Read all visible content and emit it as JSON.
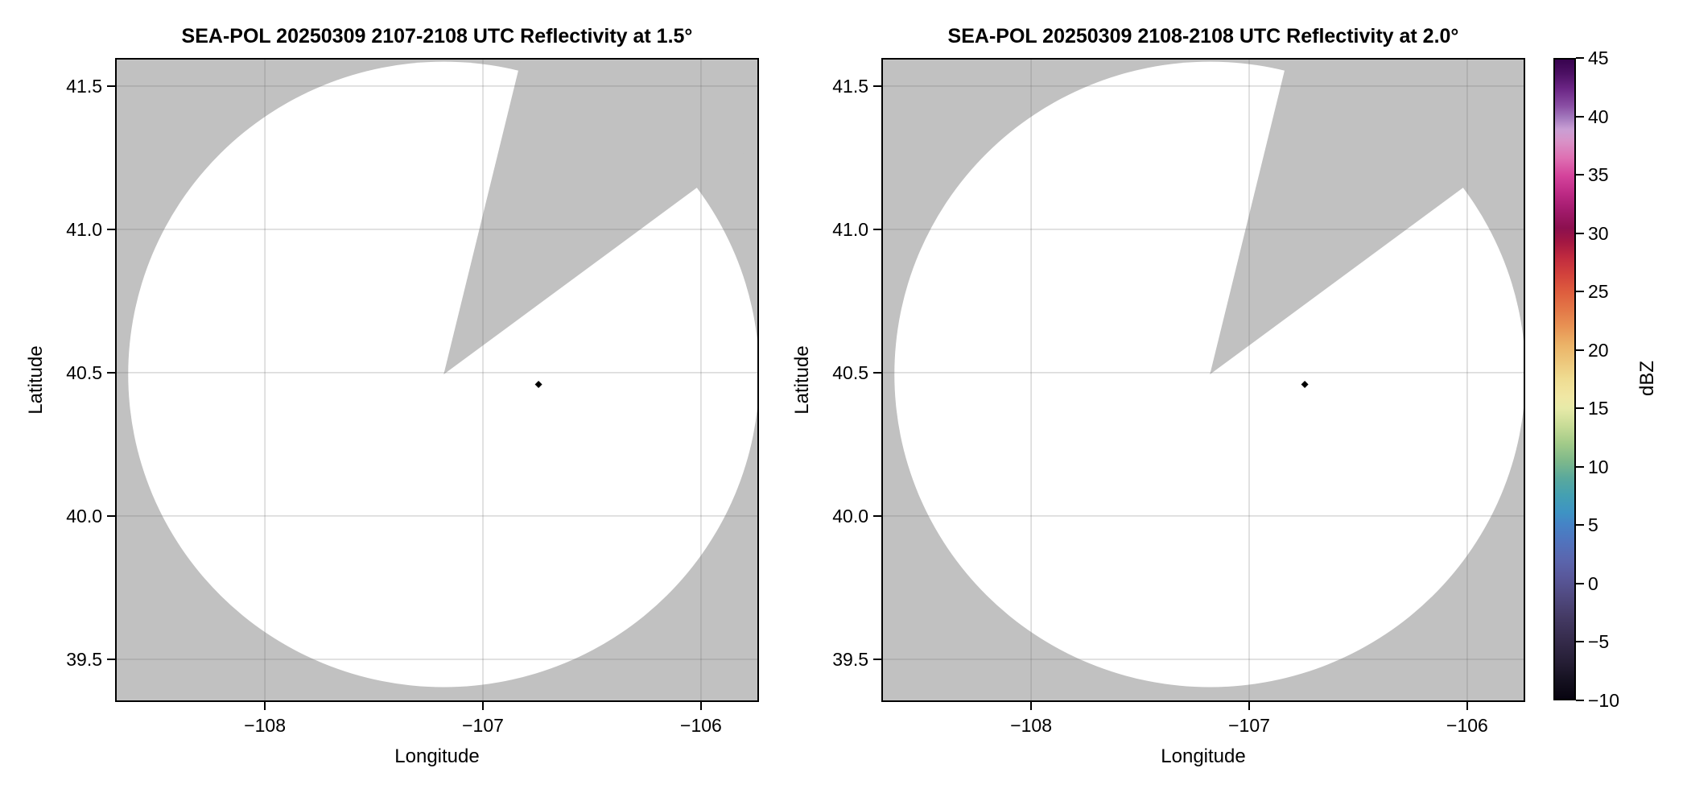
{
  "figure": {
    "background": "#ffffff",
    "panel_bg": "#c1c1c1",
    "scan_fill": "#ffffff",
    "grid_color": "rgba(110,110,110,0.28)",
    "frame_color": "#000000"
  },
  "chart_data": {
    "type": "radar_ppi_pair",
    "shared_axes": {
      "xlabel": "Longitude",
      "ylabel": "Latitude",
      "xlim": [
        -108.687,
        -105.734
      ],
      "ylim": [
        39.351,
        41.598
      ],
      "xticks": [
        {
          "value": -108,
          "label": "−108"
        },
        {
          "value": -107,
          "label": "−107"
        },
        {
          "value": -106,
          "label": "−106"
        }
      ],
      "yticks": [
        {
          "value": 41.5,
          "label": "41.5"
        },
        {
          "value": 41.0,
          "label": "41.0"
        },
        {
          "value": 40.5,
          "label": "40.5"
        },
        {
          "value": 40.0,
          "label": "40.0"
        },
        {
          "value": 39.5,
          "label": "39.5"
        }
      ],
      "grid": true
    },
    "panels": [
      {
        "title": "SEA-POL 20250309 2107-2108 UTC Reflectivity at 1.5°",
        "elevation_deg": 1.5,
        "radar_center": {
          "lon": -107.18,
          "lat": 40.494
        },
        "scan_radius": {
          "lon_deg": 1.447,
          "lat_deg": 1.091
        },
        "blocked_sector": {
          "azimuth_start_deg": 13.8,
          "azimuth_end_deg": 53.6
        },
        "marker": {
          "lon": -106.745,
          "lat": 40.459,
          "shape": "diamond",
          "color": "#000000"
        }
      },
      {
        "title": "SEA-POL 20250309 2108-2108 UTC Reflectivity at 2.0°",
        "elevation_deg": 2.0,
        "radar_center": {
          "lon": -107.18,
          "lat": 40.494
        },
        "scan_radius": {
          "lon_deg": 1.447,
          "lat_deg": 1.091
        },
        "blocked_sector": {
          "azimuth_start_deg": 13.8,
          "azimuth_end_deg": 53.6
        },
        "marker": {
          "lon": -106.745,
          "lat": 40.459,
          "shape": "diamond",
          "color": "#000000"
        }
      }
    ],
    "colorbar": {
      "label": "dBZ",
      "vmin": -10,
      "vmax": 45,
      "ticks": [
        {
          "value": 45,
          "label": "45"
        },
        {
          "value": 40,
          "label": "40"
        },
        {
          "value": 35,
          "label": "35"
        },
        {
          "value": 30,
          "label": "30"
        },
        {
          "value": 25,
          "label": "25"
        },
        {
          "value": 20,
          "label": "20"
        },
        {
          "value": 15,
          "label": "15"
        },
        {
          "value": 10,
          "label": "10"
        },
        {
          "value": 5,
          "label": "5"
        },
        {
          "value": 0,
          "label": "0"
        },
        {
          "value": -5,
          "label": "−5"
        },
        {
          "value": -10,
          "label": "−10"
        }
      ],
      "gradient_stops": [
        {
          "value": 45,
          "color": "#38034f"
        },
        {
          "value": 43.8,
          "color": "#4c1063"
        },
        {
          "value": 42.5,
          "color": "#6b2585"
        },
        {
          "value": 41,
          "color": "#8a4fa4"
        },
        {
          "value": 40,
          "color": "#a379bd"
        },
        {
          "value": 39,
          "color": "#c99fd4"
        },
        {
          "value": 38,
          "color": "#d893c8"
        },
        {
          "value": 36.5,
          "color": "#de6fb2"
        },
        {
          "value": 35,
          "color": "#d4439b"
        },
        {
          "value": 33.5,
          "color": "#bd2a85"
        },
        {
          "value": 32,
          "color": "#a11a6b"
        },
        {
          "value": 30.5,
          "color": "#8c104f"
        },
        {
          "value": 29.3,
          "color": "#a31742"
        },
        {
          "value": 28,
          "color": "#c02a3f"
        },
        {
          "value": 26.5,
          "color": "#d2423c"
        },
        {
          "value": 25,
          "color": "#de5d3e"
        },
        {
          "value": 23.5,
          "color": "#e37747"
        },
        {
          "value": 22,
          "color": "#e89354"
        },
        {
          "value": 20.5,
          "color": "#ebb267"
        },
        {
          "value": 19,
          "color": "#edc77b"
        },
        {
          "value": 17.5,
          "color": "#efdc92"
        },
        {
          "value": 16,
          "color": "#f0e7a4"
        },
        {
          "value": 15,
          "color": "#e7eaa8"
        },
        {
          "value": 13.5,
          "color": "#c8dc97"
        },
        {
          "value": 12,
          "color": "#a3cb89"
        },
        {
          "value": 10.5,
          "color": "#7fb98a"
        },
        {
          "value": 9,
          "color": "#5aa99c"
        },
        {
          "value": 7.5,
          "color": "#44a0b2"
        },
        {
          "value": 6,
          "color": "#3e93c4"
        },
        {
          "value": 5,
          "color": "#4583c6"
        },
        {
          "value": 3.5,
          "color": "#5173bd"
        },
        {
          "value": 2,
          "color": "#5a66ae"
        },
        {
          "value": 0.5,
          "color": "#59589b"
        },
        {
          "value": -1,
          "color": "#514b83"
        },
        {
          "value": -3,
          "color": "#443a64"
        },
        {
          "value": -5,
          "color": "#352b4b"
        },
        {
          "value": -7,
          "color": "#241d33"
        },
        {
          "value": -8.5,
          "color": "#14101f"
        },
        {
          "value": -10,
          "color": "#070410"
        }
      ]
    }
  }
}
